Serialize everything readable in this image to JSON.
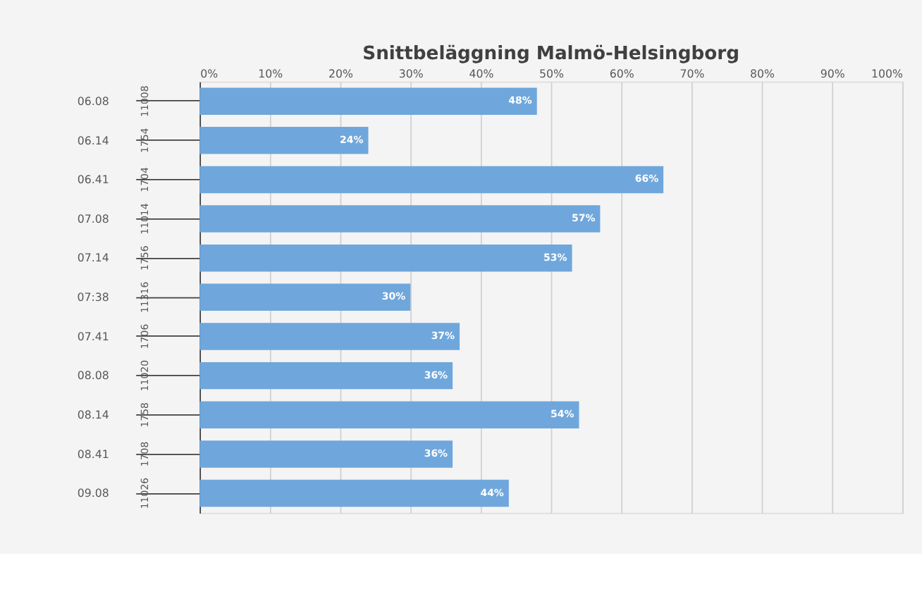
{
  "chart_data": {
    "type": "bar",
    "orientation": "horizontal",
    "title": "Snittbeläggning Malmö-Helsingborg",
    "categories": [
      "06.08",
      "06.14",
      "06.41",
      "07.08",
      "07.14",
      "07:38",
      "07.41",
      "08.08",
      "08.14",
      "08.41",
      "09.08"
    ],
    "values": [
      48,
      24,
      66,
      57,
      53,
      30,
      37,
      36,
      54,
      36,
      44
    ],
    "value_labels": [
      "48%",
      "24%",
      "66%",
      "57%",
      "53%",
      "30%",
      "37%",
      "36%",
      "54%",
      "36%",
      "44%"
    ],
    "color": "#6fa7dc",
    "xlim": [
      0,
      100
    ],
    "xticks": [
      {
        "value": 0,
        "label": "0%"
      },
      {
        "value": 10,
        "label": "10%"
      },
      {
        "value": 20,
        "label": "20%"
      },
      {
        "value": 30,
        "label": "30%"
      },
      {
        "value": 40,
        "label": "40%"
      },
      {
        "value": 50,
        "label": "50%"
      },
      {
        "value": 60,
        "label": "60%"
      },
      {
        "value": 70,
        "label": "70%"
      },
      {
        "value": 80,
        "label": "80%"
      },
      {
        "value": 90,
        "label": "90%"
      },
      {
        "value": 100,
        "label": "100%"
      }
    ],
    "grid": "x",
    "annotations": [
      "11008",
      "1754",
      "1704",
      "11014",
      "1756",
      "11316",
      "1706",
      "11020",
      "1758",
      "1708",
      "11026"
    ]
  }
}
